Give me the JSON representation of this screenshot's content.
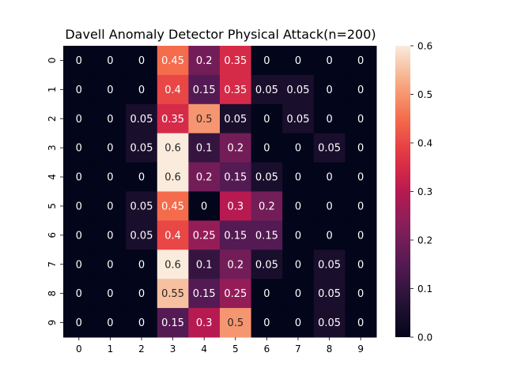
{
  "chart_data": {
    "type": "heatmap",
    "title": "Davell Anomaly Detector Physical Attack(n=200)",
    "xlabel": "",
    "ylabel": "",
    "x_categories": [
      "0",
      "1",
      "2",
      "3",
      "4",
      "5",
      "6",
      "7",
      "8",
      "9"
    ],
    "y_categories": [
      "0",
      "1",
      "2",
      "3",
      "4",
      "5",
      "6",
      "7",
      "8",
      "9"
    ],
    "values": [
      [
        0,
        0,
        0,
        0.45,
        0.2,
        0.35,
        0,
        0,
        0,
        0
      ],
      [
        0,
        0,
        0,
        0.4,
        0.15,
        0.35,
        0.05,
        0.05,
        0,
        0
      ],
      [
        0,
        0,
        0.05,
        0.35,
        0.5,
        0.05,
        0,
        0.05,
        0,
        0
      ],
      [
        0,
        0,
        0.05,
        0.6,
        0.1,
        0.2,
        0,
        0,
        0.05,
        0
      ],
      [
        0,
        0,
        0,
        0.6,
        0.2,
        0.15,
        0.05,
        0,
        0,
        0
      ],
      [
        0,
        0,
        0.05,
        0.45,
        0,
        0.3,
        0.2,
        0,
        0,
        0
      ],
      [
        0,
        0,
        0.05,
        0.4,
        0.25,
        0.15,
        0.15,
        0,
        0,
        0
      ],
      [
        0,
        0,
        0,
        0.6,
        0.1,
        0.2,
        0.05,
        0,
        0.05,
        0
      ],
      [
        0,
        0,
        0,
        0.55,
        0.15,
        0.25,
        0,
        0,
        0.05,
        0
      ],
      [
        0,
        0,
        0,
        0.15,
        0.3,
        0.5,
        0,
        0,
        0.05,
        0
      ]
    ],
    "colorbar": {
      "vmin": 0,
      "vmax": 0.6,
      "ticks": [
        "0.0",
        "0.1",
        "0.2",
        "0.3",
        "0.4",
        "0.5",
        "0.6"
      ]
    },
    "colormap": "rocket"
  }
}
